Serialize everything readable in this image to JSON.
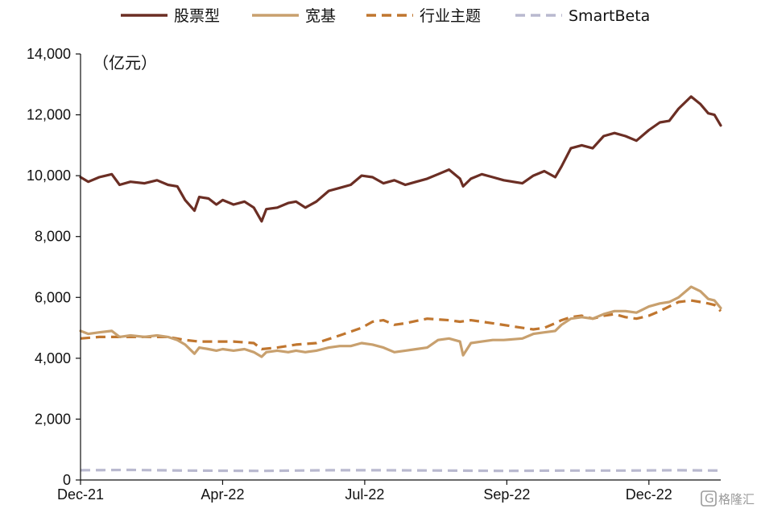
{
  "chart_data": {
    "type": "line",
    "unit_label": "（亿元）",
    "ylim": [
      0,
      14000
    ],
    "y_ticks": [
      0,
      2000,
      4000,
      6000,
      8000,
      10000,
      12000,
      14000
    ],
    "y_tick_labels": [
      "0",
      "2,000",
      "4,000",
      "6,000",
      "8,000",
      "10,000",
      "12,000",
      "14,000"
    ],
    "x_range": [
      "2021-12-31",
      "2023-02-14"
    ],
    "x_ticks": [
      "2021-12-31",
      "2022-04-01",
      "2022-07-01",
      "2022-09-30",
      "2022-12-30"
    ],
    "x_tick_labels": [
      "Dec-21",
      "Apr-22",
      "Jul-22",
      "Sep-22",
      "Dec-22"
    ],
    "grid": false,
    "legend_position": "top",
    "series": [
      {
        "name": "股票型",
        "color": "#6b2e24",
        "dash": "solid",
        "points": [
          [
            "2021-12-31",
            9950
          ],
          [
            "2022-01-05",
            9800
          ],
          [
            "2022-01-12",
            9950
          ],
          [
            "2022-01-20",
            10050
          ],
          [
            "2022-01-25",
            9700
          ],
          [
            "2022-02-01",
            9800
          ],
          [
            "2022-02-10",
            9750
          ],
          [
            "2022-02-18",
            9850
          ],
          [
            "2022-02-25",
            9700
          ],
          [
            "2022-03-03",
            9650
          ],
          [
            "2022-03-08",
            9200
          ],
          [
            "2022-03-14",
            8850
          ],
          [
            "2022-03-17",
            9300
          ],
          [
            "2022-03-23",
            9250
          ],
          [
            "2022-03-28",
            9050
          ],
          [
            "2022-04-01",
            9200
          ],
          [
            "2022-04-08",
            9050
          ],
          [
            "2022-04-15",
            9150
          ],
          [
            "2022-04-21",
            8950
          ],
          [
            "2022-04-26",
            8500
          ],
          [
            "2022-04-29",
            8900
          ],
          [
            "2022-05-06",
            8950
          ],
          [
            "2022-05-13",
            9100
          ],
          [
            "2022-05-18",
            9150
          ],
          [
            "2022-05-24",
            8950
          ],
          [
            "2022-05-31",
            9150
          ],
          [
            "2022-06-08",
            9500
          ],
          [
            "2022-06-15",
            9600
          ],
          [
            "2022-06-22",
            9700
          ],
          [
            "2022-06-29",
            10000
          ],
          [
            "2022-07-06",
            9950
          ],
          [
            "2022-07-13",
            9750
          ],
          [
            "2022-07-20",
            9850
          ],
          [
            "2022-07-27",
            9700
          ],
          [
            "2022-08-03",
            9800
          ],
          [
            "2022-08-10",
            9900
          ],
          [
            "2022-08-17",
            10050
          ],
          [
            "2022-08-24",
            10200
          ],
          [
            "2022-08-31",
            9900
          ],
          [
            "2022-09-02",
            9650
          ],
          [
            "2022-09-07",
            9900
          ],
          [
            "2022-09-14",
            10050
          ],
          [
            "2022-09-21",
            9950
          ],
          [
            "2022-09-28",
            9850
          ],
          [
            "2022-10-10",
            9750
          ],
          [
            "2022-10-17",
            10000
          ],
          [
            "2022-10-24",
            10150
          ],
          [
            "2022-10-31",
            9950
          ],
          [
            "2022-11-04",
            10300
          ],
          [
            "2022-11-10",
            10900
          ],
          [
            "2022-11-17",
            11000
          ],
          [
            "2022-11-24",
            10900
          ],
          [
            "2022-12-01",
            11300
          ],
          [
            "2022-12-08",
            11400
          ],
          [
            "2022-12-15",
            11300
          ],
          [
            "2022-12-22",
            11150
          ],
          [
            "2022-12-30",
            11500
          ],
          [
            "2023-01-06",
            11750
          ],
          [
            "2023-01-12",
            11800
          ],
          [
            "2023-01-18",
            12200
          ],
          [
            "2023-01-26",
            12600
          ],
          [
            "2023-02-01",
            12350
          ],
          [
            "2023-02-06",
            12050
          ],
          [
            "2023-02-10",
            12000
          ],
          [
            "2023-02-14",
            11650
          ]
        ]
      },
      {
        "name": "宽基",
        "color": "#c8a06e",
        "dash": "solid",
        "points": [
          [
            "2021-12-31",
            4900
          ],
          [
            "2022-01-05",
            4800
          ],
          [
            "2022-01-12",
            4850
          ],
          [
            "2022-01-20",
            4900
          ],
          [
            "2022-01-25",
            4700
          ],
          [
            "2022-02-01",
            4750
          ],
          [
            "2022-02-10",
            4700
          ],
          [
            "2022-02-18",
            4750
          ],
          [
            "2022-02-25",
            4700
          ],
          [
            "2022-03-03",
            4600
          ],
          [
            "2022-03-08",
            4450
          ],
          [
            "2022-03-14",
            4150
          ],
          [
            "2022-03-17",
            4350
          ],
          [
            "2022-03-23",
            4300
          ],
          [
            "2022-03-28",
            4250
          ],
          [
            "2022-04-01",
            4300
          ],
          [
            "2022-04-08",
            4250
          ],
          [
            "2022-04-15",
            4300
          ],
          [
            "2022-04-21",
            4200
          ],
          [
            "2022-04-26",
            4050
          ],
          [
            "2022-04-29",
            4200
          ],
          [
            "2022-05-06",
            4250
          ],
          [
            "2022-05-13",
            4200
          ],
          [
            "2022-05-18",
            4250
          ],
          [
            "2022-05-24",
            4200
          ],
          [
            "2022-05-31",
            4250
          ],
          [
            "2022-06-08",
            4350
          ],
          [
            "2022-06-15",
            4400
          ],
          [
            "2022-06-22",
            4400
          ],
          [
            "2022-06-29",
            4500
          ],
          [
            "2022-07-06",
            4450
          ],
          [
            "2022-07-13",
            4350
          ],
          [
            "2022-07-20",
            4200
          ],
          [
            "2022-07-27",
            4250
          ],
          [
            "2022-08-03",
            4300
          ],
          [
            "2022-08-10",
            4350
          ],
          [
            "2022-08-17",
            4600
          ],
          [
            "2022-08-24",
            4650
          ],
          [
            "2022-08-31",
            4550
          ],
          [
            "2022-09-02",
            4100
          ],
          [
            "2022-09-07",
            4500
          ],
          [
            "2022-09-14",
            4550
          ],
          [
            "2022-09-21",
            4600
          ],
          [
            "2022-09-28",
            4600
          ],
          [
            "2022-10-10",
            4650
          ],
          [
            "2022-10-17",
            4800
          ],
          [
            "2022-10-24",
            4850
          ],
          [
            "2022-10-31",
            4900
          ],
          [
            "2022-11-04",
            5100
          ],
          [
            "2022-11-10",
            5300
          ],
          [
            "2022-11-17",
            5350
          ],
          [
            "2022-11-24",
            5300
          ],
          [
            "2022-12-01",
            5450
          ],
          [
            "2022-12-08",
            5550
          ],
          [
            "2022-12-15",
            5550
          ],
          [
            "2022-12-22",
            5500
          ],
          [
            "2022-12-30",
            5700
          ],
          [
            "2023-01-06",
            5800
          ],
          [
            "2023-01-12",
            5850
          ],
          [
            "2023-01-18",
            6000
          ],
          [
            "2023-01-26",
            6350
          ],
          [
            "2023-02-01",
            6200
          ],
          [
            "2023-02-06",
            5950
          ],
          [
            "2023-02-10",
            5900
          ],
          [
            "2023-02-14",
            5650
          ]
        ]
      },
      {
        "name": "行业主题",
        "color": "#c0762f",
        "dash": "dash",
        "points": [
          [
            "2021-12-31",
            4650
          ],
          [
            "2022-01-12",
            4700
          ],
          [
            "2022-01-25",
            4700
          ],
          [
            "2022-02-10",
            4700
          ],
          [
            "2022-02-25",
            4700
          ],
          [
            "2022-03-08",
            4600
          ],
          [
            "2022-03-17",
            4550
          ],
          [
            "2022-03-28",
            4550
          ],
          [
            "2022-04-08",
            4550
          ],
          [
            "2022-04-21",
            4500
          ],
          [
            "2022-04-26",
            4300
          ],
          [
            "2022-05-06",
            4350
          ],
          [
            "2022-05-18",
            4450
          ],
          [
            "2022-05-31",
            4500
          ],
          [
            "2022-06-15",
            4750
          ],
          [
            "2022-06-29",
            5000
          ],
          [
            "2022-07-06",
            5200
          ],
          [
            "2022-07-13",
            5250
          ],
          [
            "2022-07-20",
            5100
          ],
          [
            "2022-07-27",
            5150
          ],
          [
            "2022-08-10",
            5300
          ],
          [
            "2022-08-24",
            5250
          ],
          [
            "2022-08-31",
            5200
          ],
          [
            "2022-09-07",
            5250
          ],
          [
            "2022-09-21",
            5150
          ],
          [
            "2022-10-10",
            5000
          ],
          [
            "2022-10-17",
            4950
          ],
          [
            "2022-10-24",
            5000
          ],
          [
            "2022-10-31",
            5150
          ],
          [
            "2022-11-04",
            5250
          ],
          [
            "2022-11-10",
            5350
          ],
          [
            "2022-11-17",
            5400
          ],
          [
            "2022-11-24",
            5300
          ],
          [
            "2022-12-01",
            5400
          ],
          [
            "2022-12-08",
            5450
          ],
          [
            "2022-12-15",
            5350
          ],
          [
            "2022-12-22",
            5300
          ],
          [
            "2022-12-30",
            5400
          ],
          [
            "2023-01-06",
            5550
          ],
          [
            "2023-01-12",
            5700
          ],
          [
            "2023-01-18",
            5850
          ],
          [
            "2023-01-26",
            5900
          ],
          [
            "2023-02-01",
            5850
          ],
          [
            "2023-02-06",
            5800
          ],
          [
            "2023-02-10",
            5750
          ],
          [
            "2023-02-14",
            5550
          ]
        ]
      },
      {
        "name": "SmartBeta",
        "color": "#b9b9cf",
        "dash": "dash",
        "points": [
          [
            "2021-12-31",
            320
          ],
          [
            "2022-02-01",
            330
          ],
          [
            "2022-03-08",
            310
          ],
          [
            "2022-04-26",
            300
          ],
          [
            "2022-06-08",
            320
          ],
          [
            "2022-07-13",
            320
          ],
          [
            "2022-08-24",
            310
          ],
          [
            "2022-09-28",
            300
          ],
          [
            "2022-11-04",
            310
          ],
          [
            "2022-12-15",
            310
          ],
          [
            "2023-01-18",
            320
          ],
          [
            "2023-02-14",
            310
          ]
        ]
      }
    ]
  },
  "watermark": {
    "text": "格隆汇",
    "logo_letter": "G"
  }
}
